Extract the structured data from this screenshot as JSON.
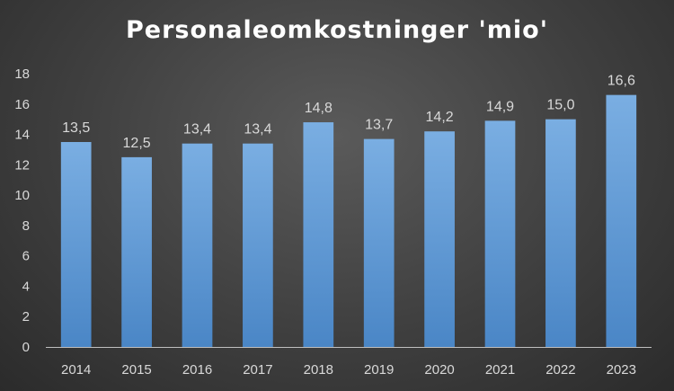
{
  "title": "Personaleomkostninger 'mio'",
  "colors": {
    "bar_top": "#7aaee2",
    "bar_bottom": "#4a86c6",
    "axis": "#bfbfbf"
  },
  "chart_data": {
    "type": "bar",
    "title": "Personaleomkostninger 'mio'",
    "categories": [
      "2014",
      "2015",
      "2016",
      "2017",
      "2018",
      "2019",
      "2020",
      "2021",
      "2022",
      "2023"
    ],
    "values": [
      13.5,
      12.5,
      13.4,
      13.4,
      14.8,
      13.7,
      14.2,
      14.9,
      15.0,
      16.6
    ],
    "data_labels": [
      "13,5",
      "12,5",
      "13,4",
      "13,4",
      "14,8",
      "13,7",
      "14,2",
      "14,9",
      "15,0",
      "16,6"
    ],
    "yticks": [
      0,
      2,
      4,
      6,
      8,
      10,
      12,
      14,
      16,
      18
    ],
    "ylim": [
      0,
      18
    ],
    "xlabel": "",
    "ylabel": "",
    "grid": false,
    "legend": "none"
  }
}
